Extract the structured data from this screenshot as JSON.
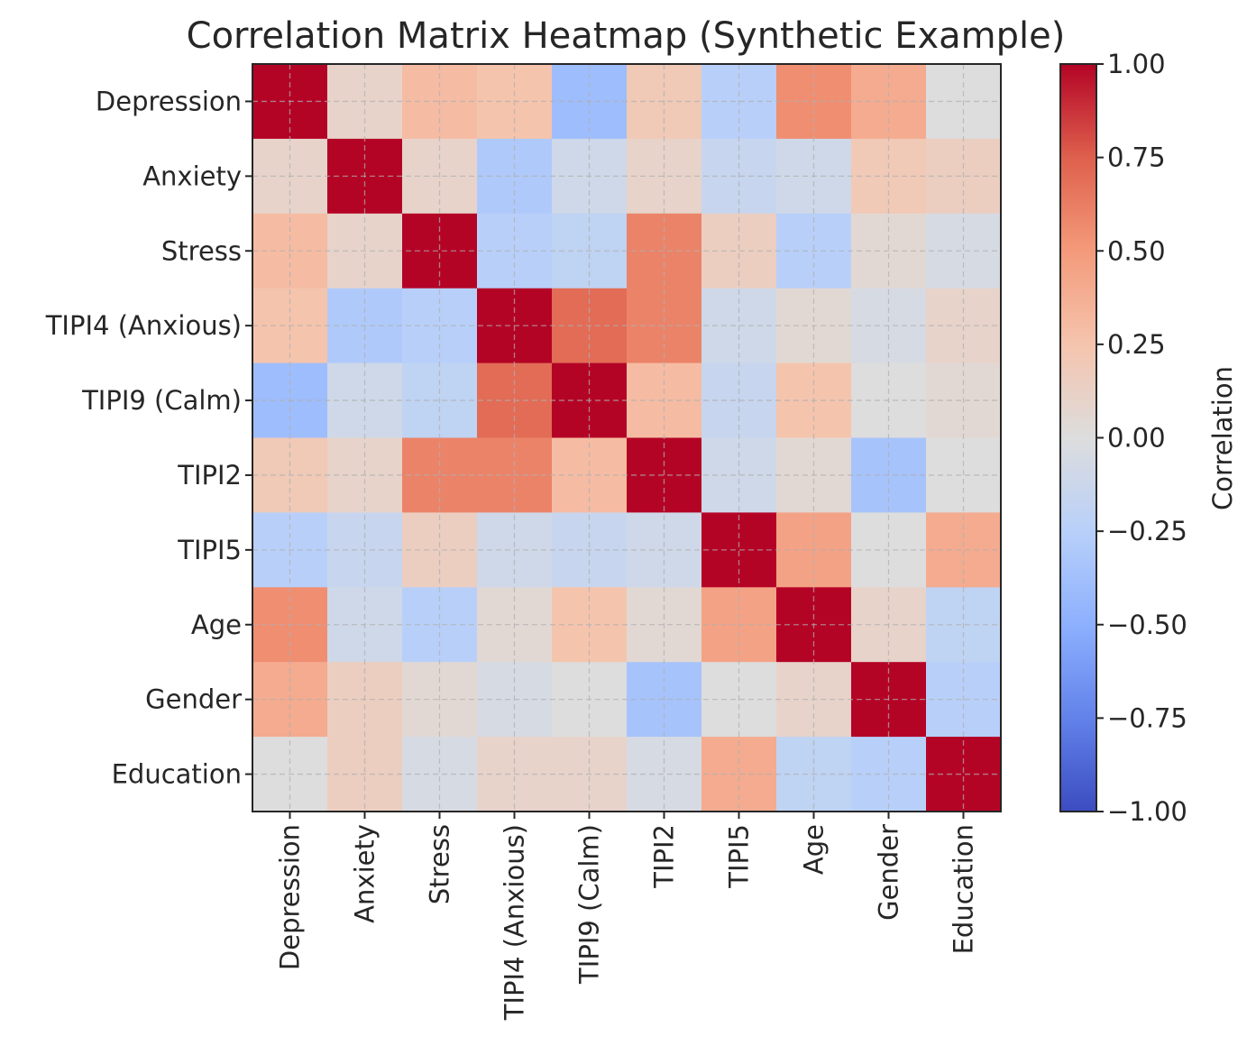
{
  "chart_data": {
    "type": "heatmap",
    "title": "Correlation Matrix Heatmap (Synthetic Example)",
    "categories": [
      "Depression",
      "Anxiety",
      "Stress",
      "TIPI4 (Anxious)",
      "TIPI9 (Calm)",
      "TIPI2",
      "TIPI5",
      "Age",
      "Gender",
      "Education"
    ],
    "values": [
      [
        1.0,
        0.1,
        0.3,
        0.25,
        -0.4,
        0.2,
        -0.25,
        0.55,
        0.4,
        0.0
      ],
      [
        0.1,
        1.0,
        0.1,
        -0.3,
        -0.1,
        0.1,
        -0.15,
        -0.1,
        0.2,
        0.15
      ],
      [
        0.3,
        0.1,
        1.0,
        -0.25,
        -0.2,
        0.6,
        0.15,
        -0.25,
        0.05,
        -0.05
      ],
      [
        0.25,
        -0.3,
        -0.25,
        1.0,
        0.7,
        0.6,
        -0.1,
        0.05,
        -0.05,
        0.1
      ],
      [
        -0.4,
        -0.1,
        -0.2,
        0.7,
        1.0,
        0.3,
        -0.15,
        0.25,
        0.0,
        0.05
      ],
      [
        0.2,
        0.1,
        0.6,
        0.6,
        0.3,
        1.0,
        -0.1,
        0.05,
        -0.35,
        0.0
      ],
      [
        -0.25,
        -0.15,
        0.15,
        -0.1,
        -0.15,
        -0.1,
        1.0,
        0.45,
        0.0,
        0.4
      ],
      [
        0.55,
        -0.1,
        -0.25,
        0.05,
        0.25,
        0.05,
        0.45,
        1.0,
        0.1,
        -0.2
      ],
      [
        0.4,
        0.15,
        0.05,
        -0.05,
        0.0,
        -0.35,
        0.0,
        0.1,
        1.0,
        -0.25
      ],
      [
        0.0,
        0.15,
        -0.05,
        0.1,
        0.1,
        -0.05,
        0.4,
        -0.2,
        -0.25,
        1.0
      ]
    ],
    "colorbar": {
      "label": "Correlation",
      "vmin": -1.0,
      "vmax": 1.0,
      "ticks": [
        "1.00",
        "0.75",
        "0.50",
        "0.25",
        "0.00",
        "−0.25",
        "−0.50",
        "−0.75",
        "−1.00"
      ],
      "colormap": "coolwarm",
      "low_color": "#3b4cc0",
      "mid_color": "#dddddd",
      "high_color": "#b40426"
    },
    "grid": true
  }
}
